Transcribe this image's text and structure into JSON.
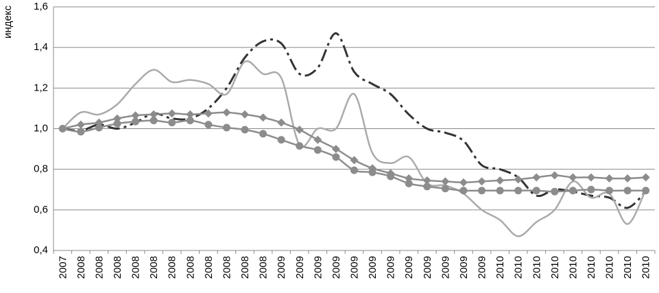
{
  "chart_data": {
    "type": "line",
    "y_label": "индекс",
    "categories": [
      "2007",
      "2008",
      "2008",
      "2008",
      "2008",
      "2008",
      "2008",
      "2008",
      "2008",
      "2008",
      "2008",
      "2008",
      "2009",
      "2009",
      "2009",
      "2009",
      "2009",
      "2009",
      "2009",
      "2009",
      "2009",
      "2009",
      "2009",
      "2009",
      "2010",
      "2010",
      "2010",
      "2010",
      "2010",
      "2010",
      "2010",
      "2010",
      "2010"
    ],
    "ylim": [
      0.4,
      1.6
    ],
    "yticks": [
      {
        "value": 0.4,
        "label": "0,4"
      },
      {
        "value": 0.6,
        "label": "0,6"
      },
      {
        "value": 0.8,
        "label": "0,8"
      },
      {
        "value": 1.0,
        "label": "1,0"
      },
      {
        "value": 1.2,
        "label": "1,2"
      },
      {
        "value": 1.4,
        "label": "1,4"
      },
      {
        "value": 1.6,
        "label": "1,6"
      }
    ],
    "grid": true,
    "series": [
      {
        "color": "#333333",
        "dash": true,
        "marker": "none",
        "values": [
          1.0,
          0.99,
          1.02,
          1.0,
          1.03,
          1.075,
          1.05,
          1.05,
          1.1,
          1.2,
          1.35,
          1.43,
          1.42,
          1.27,
          1.3,
          1.47,
          1.28,
          1.22,
          1.17,
          1.07,
          1.0,
          0.98,
          0.94,
          0.82,
          0.8,
          0.76,
          0.67,
          0.7,
          0.69,
          0.67,
          0.66,
          0.61,
          0.69
        ]
      },
      {
        "color": "#aaaaaa",
        "dash": false,
        "marker": "none",
        "values": [
          1.0,
          1.08,
          1.07,
          1.12,
          1.22,
          1.29,
          1.23,
          1.24,
          1.22,
          1.17,
          1.33,
          1.27,
          1.25,
          0.92,
          1.0,
          1.0,
          1.17,
          0.88,
          0.83,
          0.86,
          0.73,
          0.72,
          0.68,
          0.6,
          0.55,
          0.47,
          0.54,
          0.6,
          0.74,
          0.66,
          0.68,
          0.53,
          0.7
        ]
      },
      {
        "color": "#8c8c8c",
        "dash": false,
        "marker": "diamond",
        "values": [
          1.0,
          1.02,
          1.03,
          1.05,
          1.065,
          1.07,
          1.075,
          1.07,
          1.075,
          1.08,
          1.07,
          1.055,
          1.03,
          0.995,
          0.945,
          0.9,
          0.845,
          0.805,
          0.78,
          0.755,
          0.745,
          0.74,
          0.735,
          0.74,
          0.745,
          0.75,
          0.76,
          0.77,
          0.76,
          0.76,
          0.755,
          0.755,
          0.76
        ]
      },
      {
        "color": "#8c8c8c",
        "dash": false,
        "marker": "circle",
        "values": [
          1.0,
          0.985,
          1.005,
          1.025,
          1.035,
          1.04,
          1.03,
          1.04,
          1.02,
          1.005,
          0.995,
          0.975,
          0.945,
          0.915,
          0.895,
          0.86,
          0.795,
          0.785,
          0.765,
          0.73,
          0.715,
          0.705,
          0.695,
          0.695,
          0.695,
          0.695,
          0.695,
          0.69,
          0.695,
          0.7,
          0.695,
          0.695,
          0.695
        ]
      }
    ]
  }
}
